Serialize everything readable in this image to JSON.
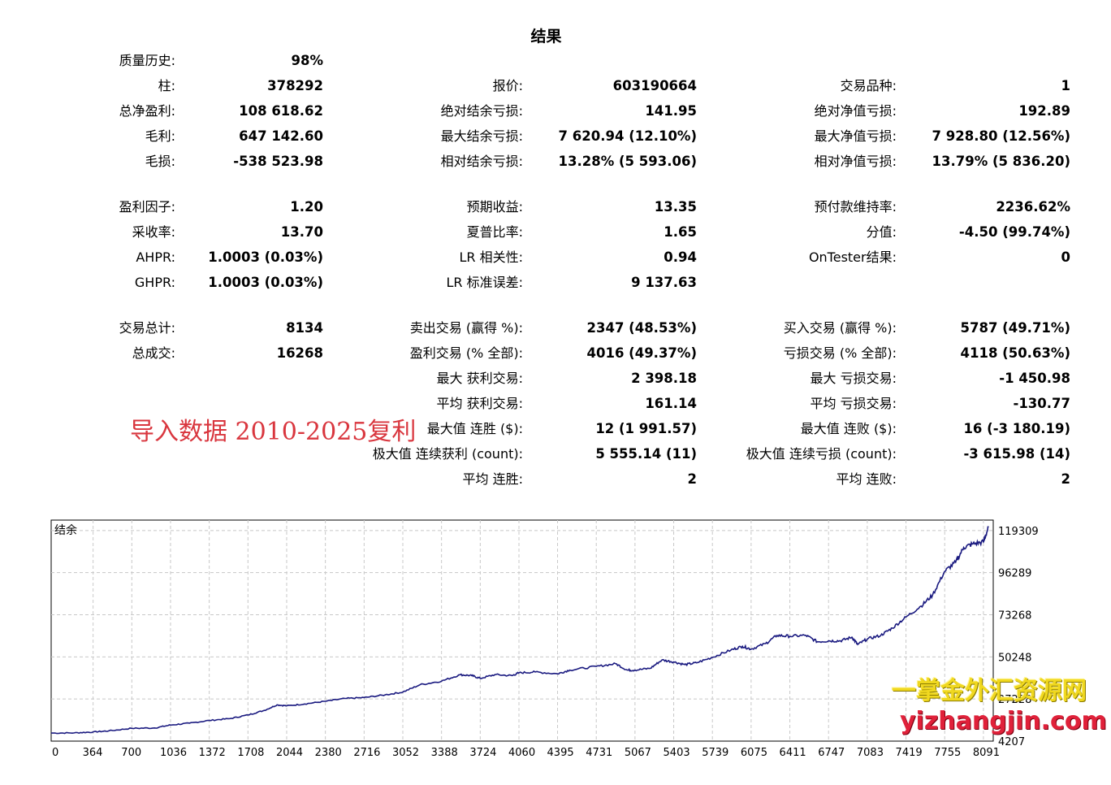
{
  "title": "结果",
  "stats": [
    {
      "row": 0,
      "cells": [
        [
          "质量历史:",
          "98%"
        ],
        null,
        null
      ]
    },
    {
      "row": 1,
      "cells": [
        [
          "柱:",
          "378292"
        ],
        [
          "报价:",
          "603190664"
        ],
        [
          "交易品种:",
          "1"
        ]
      ]
    },
    {
      "row": 2,
      "cells": [
        [
          "总净盈利:",
          "108 618.62"
        ],
        [
          "绝对结余亏损:",
          "141.95"
        ],
        [
          "绝对净值亏损:",
          "192.89"
        ]
      ]
    },
    {
      "row": 3,
      "cells": [
        [
          "毛利:",
          "647 142.60"
        ],
        [
          "最大结余亏损:",
          "7 620.94 (12.10%)"
        ],
        [
          "最大净值亏损:",
          "7 928.80 (12.56%)"
        ]
      ]
    },
    {
      "row": 4,
      "cells": [
        [
          "毛损:",
          "-538 523.98"
        ],
        [
          "相对结余亏损:",
          "13.28% (5 593.06)"
        ],
        [
          "相对净值亏损:",
          "13.79% (5 836.20)"
        ]
      ]
    },
    {
      "row": 6,
      "cells": [
        [
          "盈利因子:",
          "1.20"
        ],
        [
          "预期收益:",
          "13.35"
        ],
        [
          "预付款维持率:",
          "2236.62%"
        ]
      ]
    },
    {
      "row": 7,
      "cells": [
        [
          "采收率:",
          "13.70"
        ],
        [
          "夏普比率:",
          "1.65"
        ],
        [
          "分值:",
          "-4.50 (99.74%)"
        ]
      ]
    },
    {
      "row": 8,
      "cells": [
        [
          "AHPR:",
          "1.0003 (0.03%)"
        ],
        [
          "LR 相关性:",
          "0.94"
        ],
        [
          "OnTester结果:",
          "0"
        ]
      ]
    },
    {
      "row": 9,
      "cells": [
        [
          "GHPR:",
          "1.0003 (0.03%)"
        ],
        [
          "LR 标准误差:",
          "9 137.63"
        ],
        null
      ]
    },
    {
      "row": 11,
      "cells": [
        [
          "交易总计:",
          "8134"
        ],
        [
          "卖出交易 (赢得 %):",
          "2347 (48.53%)"
        ],
        [
          "买入交易 (赢得 %):",
          "5787 (49.71%)"
        ]
      ]
    },
    {
      "row": 12,
      "cells": [
        [
          "总成交:",
          "16268"
        ],
        [
          "盈利交易 (% 全部):",
          "4016 (49.37%)"
        ],
        [
          "亏损交易 (% 全部):",
          "4118 (50.63%)"
        ]
      ]
    },
    {
      "row": 13,
      "cells": [
        null,
        [
          "最大 获利交易:",
          "2 398.18"
        ],
        [
          "最大 亏损交易:",
          "-1 450.98"
        ]
      ]
    },
    {
      "row": 14,
      "cells": [
        null,
        [
          "平均 获利交易:",
          "161.14"
        ],
        [
          "平均 亏损交易:",
          "-130.77"
        ]
      ]
    },
    {
      "row": 15,
      "cells": [
        null,
        [
          "最大值 连胜 ($):",
          "12 (1 991.57)"
        ],
        [
          "最大值 连败 ($):",
          "16 (-3 180.19)"
        ]
      ]
    },
    {
      "row": 16,
      "cells": [
        null,
        [
          "极大值 连续获利 (count):",
          "5 555.14 (11)"
        ],
        [
          "极大值 连续亏损 (count):",
          "-3 615.98 (14)"
        ]
      ]
    },
    {
      "row": 17,
      "cells": [
        null,
        [
          "平均 连胜:",
          "2"
        ],
        [
          "平均 连败:",
          "2"
        ]
      ]
    }
  ],
  "import_note": "导入数据 2010-2025复利",
  "watermark": {
    "line1": "一掌金外汇资源网",
    "line2": "yizhangjin.com"
  },
  "colors": {
    "balance_line": "#1a1a80",
    "note": "#d9363e",
    "grid": "#c8c8c8"
  },
  "chart_data": {
    "type": "line",
    "title": "结余",
    "x_ticks": [
      "0",
      "364",
      "700",
      "1036",
      "1372",
      "1708",
      "2044",
      "2380",
      "2716",
      "3052",
      "3388",
      "3724",
      "4060",
      "4395",
      "4731",
      "5067",
      "5403",
      "5739",
      "6075",
      "6411",
      "6747",
      "7083",
      "7419",
      "7755",
      "8091"
    ],
    "y_ticks": [
      "119309",
      "96289",
      "73268",
      "50248",
      "27228",
      "4207"
    ],
    "xlim": [
      0,
      8134
    ],
    "ylim": [
      4207,
      125000
    ],
    "series": [
      {
        "points": [
          [
            0,
            8600
          ],
          [
            200,
            8700
          ],
          [
            364,
            9200
          ],
          [
            500,
            9800
          ],
          [
            700,
            11200
          ],
          [
            900,
            11400
          ],
          [
            1036,
            13000
          ],
          [
            1200,
            14000
          ],
          [
            1372,
            15500
          ],
          [
            1550,
            16500
          ],
          [
            1708,
            18500
          ],
          [
            1850,
            21000
          ],
          [
            1960,
            24000
          ],
          [
            2044,
            23500
          ],
          [
            2200,
            24500
          ],
          [
            2380,
            26000
          ],
          [
            2550,
            27500
          ],
          [
            2716,
            28000
          ],
          [
            2900,
            29500
          ],
          [
            3052,
            31000
          ],
          [
            3200,
            35000
          ],
          [
            3388,
            37000
          ],
          [
            3550,
            40500
          ],
          [
            3650,
            40000
          ],
          [
            3724,
            38500
          ],
          [
            3850,
            40500
          ],
          [
            4000,
            40000
          ],
          [
            4060,
            41500
          ],
          [
            4200,
            42000
          ],
          [
            4395,
            41000
          ],
          [
            4500,
            43000
          ],
          [
            4731,
            45000
          ],
          [
            4900,
            46500
          ],
          [
            5000,
            43000
          ],
          [
            5067,
            43000
          ],
          [
            5200,
            44000
          ],
          [
            5300,
            48500
          ],
          [
            5403,
            47500
          ],
          [
            5500,
            46000
          ],
          [
            5600,
            47000
          ],
          [
            5739,
            50000
          ],
          [
            5900,
            54000
          ],
          [
            6000,
            56000
          ],
          [
            6075,
            54500
          ],
          [
            6200,
            57500
          ],
          [
            6300,
            62000
          ],
          [
            6411,
            61500
          ],
          [
            6550,
            62000
          ],
          [
            6650,
            58500
          ],
          [
            6747,
            59000
          ],
          [
            6850,
            59000
          ],
          [
            6950,
            61000
          ],
          [
            7000,
            57000
          ],
          [
            7083,
            60000
          ],
          [
            7200,
            62000
          ],
          [
            7300,
            66000
          ],
          [
            7419,
            72000
          ],
          [
            7550,
            78000
          ],
          [
            7650,
            84000
          ],
          [
            7755,
            97000
          ],
          [
            7850,
            102000
          ],
          [
            7920,
            110000
          ],
          [
            8000,
            112000
          ],
          [
            8091,
            113000
          ],
          [
            8134,
            121000
          ]
        ]
      }
    ]
  }
}
